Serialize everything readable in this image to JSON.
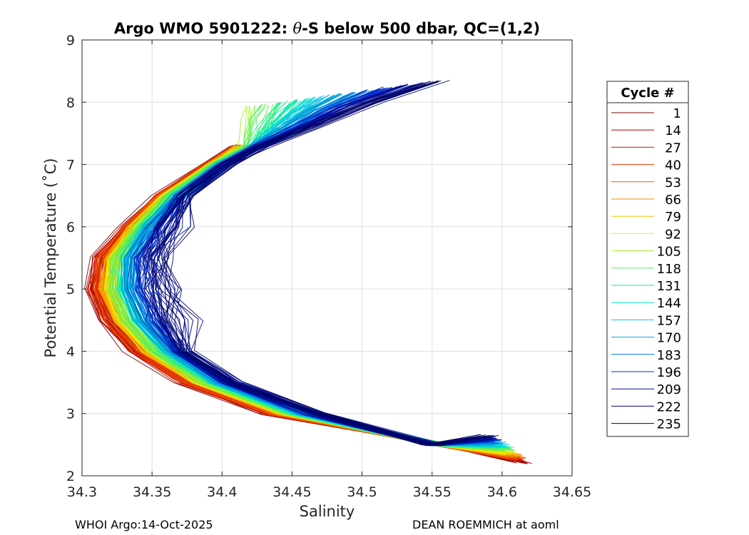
{
  "chart_data": {
    "type": "line",
    "title_prefix": "Argo WMO 5901222: ",
    "title_theta": "θ",
    "title_suffix": "-S below 500 dbar,  QC=(1,2)",
    "xlabel": "Salinity",
    "ylabel": "Potential Temperature (˚C)",
    "xlim": [
      34.3,
      34.65
    ],
    "ylim": [
      2,
      9
    ],
    "xticks": [
      34.3,
      34.35,
      34.4,
      34.45,
      34.5,
      34.55,
      34.6,
      34.65
    ],
    "xtick_labels": [
      "34.3",
      "34.35",
      "34.4",
      "34.45",
      "34.5",
      "34.55",
      "34.6",
      "34.65"
    ],
    "yticks": [
      2,
      3,
      4,
      5,
      6,
      7,
      8,
      9
    ],
    "ytick_labels": [
      "2",
      "3",
      "4",
      "5",
      "6",
      "7",
      "8",
      "9"
    ],
    "grid": true,
    "legend_title": "Cycle #",
    "legend_position": "right",
    "legend_entries": [
      {
        "label": "1",
        "color": "#800000"
      },
      {
        "label": "14",
        "color": "#a80000"
      },
      {
        "label": "27",
        "color": "#cc1a00"
      },
      {
        "label": "40",
        "color": "#e63300"
      },
      {
        "label": "53",
        "color": "#f25a00"
      },
      {
        "label": "66",
        "color": "#f58a00"
      },
      {
        "label": "79",
        "color": "#f5c000"
      },
      {
        "label": "92",
        "color": "#f0f000"
      },
      {
        "label": "105",
        "color": "#a8f025"
      },
      {
        "label": "118",
        "color": "#5cf05c"
      },
      {
        "label": "131",
        "color": "#1ef08c"
      },
      {
        "label": "144",
        "color": "#00e6c0"
      },
      {
        "label": "157",
        "color": "#00c8e6"
      },
      {
        "label": "170",
        "color": "#00a0d8"
      },
      {
        "label": "183",
        "color": "#0070e0"
      },
      {
        "label": "196",
        "color": "#0030d0"
      },
      {
        "label": "209",
        "color": "#0010a0"
      },
      {
        "label": "222",
        "color": "#000a80"
      },
      {
        "label": "235",
        "color": "#000060"
      }
    ],
    "series_description": "theta-S profiles for cycles 1-235",
    "profile_shape": {
      "theta": [
        2.2,
        2.5,
        3.0,
        3.5,
        4.0,
        4.5,
        5.0,
        5.5,
        6.0,
        6.5,
        7.0,
        7.3
      ],
      "salinity_early": [
        34.615,
        34.56,
        34.43,
        34.37,
        34.335,
        34.315,
        34.305,
        34.31,
        34.33,
        34.355,
        34.39,
        34.41
      ],
      "salinity_late": [
        34.59,
        34.55,
        34.47,
        34.41,
        34.375,
        34.355,
        34.345,
        34.345,
        34.355,
        34.375,
        34.405,
        34.43
      ]
    },
    "upper_extension": {
      "theta": [
        7.3,
        7.6,
        8.0,
        8.35
      ],
      "salinity_offset": [
        0,
        0.035,
        0.08,
        0.13
      ]
    }
  },
  "footer": {
    "left": "WHOI Argo:14-Oct-2025",
    "right": "DEAN ROEMMICH at aoml"
  }
}
